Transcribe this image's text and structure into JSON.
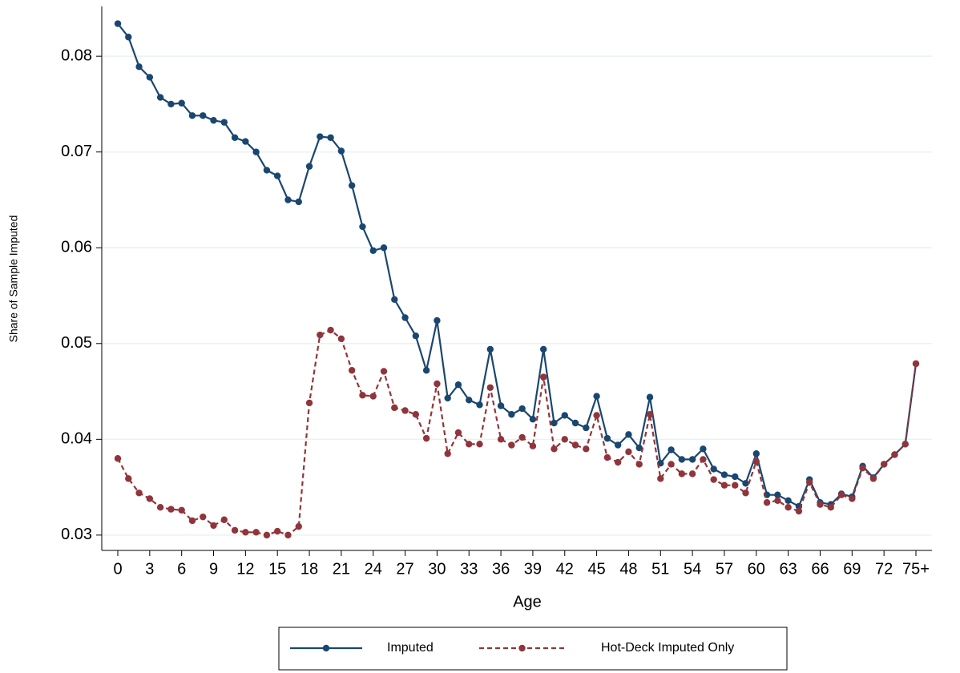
{
  "chart_data": {
    "type": "line",
    "xlabel": "Age",
    "ylabel": "Share of Sample Imputed",
    "categories": [
      "0",
      null,
      null,
      "3",
      null,
      null,
      "6",
      null,
      null,
      "9",
      null,
      null,
      "12",
      null,
      null,
      "15",
      null,
      null,
      "18",
      null,
      null,
      "21",
      null,
      null,
      "24",
      null,
      null,
      "27",
      null,
      null,
      "30",
      null,
      null,
      "33",
      null,
      null,
      "36",
      null,
      null,
      "39",
      null,
      null,
      "42",
      null,
      null,
      "45",
      null,
      null,
      "48",
      null,
      null,
      "51",
      null,
      null,
      "54",
      null,
      null,
      "57",
      null,
      null,
      "60",
      null,
      null,
      "63",
      null,
      null,
      "66",
      null,
      null,
      "69",
      null,
      null,
      "72",
      null,
      null,
      "75+"
    ],
    "series": [
      {
        "name": "Imputed",
        "color": "#1a476f",
        "dashed": false,
        "values": [
          0.0834,
          0.082,
          0.0789,
          0.0778,
          0.0757,
          0.075,
          0.0751,
          0.0738,
          0.0738,
          0.0733,
          0.0731,
          0.0715,
          0.0711,
          0.07,
          0.0681,
          0.0675,
          0.065,
          0.0648,
          0.0685,
          0.0716,
          0.0715,
          0.0701,
          0.0665,
          0.0622,
          0.0597,
          0.06,
          0.0546,
          0.0527,
          0.0508,
          0.0472,
          0.0524,
          0.0443,
          0.0457,
          0.0441,
          0.0436,
          0.0494,
          0.0435,
          0.0426,
          0.0432,
          0.0421,
          0.0494,
          0.0417,
          0.0425,
          0.0417,
          0.0412,
          0.0445,
          0.0401,
          0.0394,
          0.0405,
          0.0391,
          0.0444,
          0.0375,
          0.0389,
          0.0379,
          0.0379,
          0.039,
          0.0369,
          0.0363,
          0.0361,
          0.0354,
          0.0385,
          0.0342,
          0.0342,
          0.0336,
          0.033,
          0.0358,
          0.0334,
          0.0332,
          0.0343,
          0.034,
          0.0372,
          0.036,
          0.0374,
          0.0384,
          0.0395,
          0.0479
        ]
      },
      {
        "name": "Hot-Deck Imputed Only",
        "color": "#90353b",
        "dashed": true,
        "values": [
          0.038,
          0.0359,
          0.0344,
          0.0338,
          0.0329,
          0.0327,
          0.0326,
          0.0315,
          0.0319,
          0.031,
          0.0316,
          0.0305,
          0.0303,
          0.0303,
          0.03,
          0.0304,
          0.03,
          0.0309,
          0.0438,
          0.0509,
          0.0514,
          0.0505,
          0.0472,
          0.0446,
          0.0445,
          0.0471,
          0.0433,
          0.043,
          0.0426,
          0.0401,
          0.0458,
          0.0385,
          0.0407,
          0.0395,
          0.0395,
          0.0454,
          0.04,
          0.0394,
          0.0402,
          0.0393,
          0.0465,
          0.039,
          0.04,
          0.0394,
          0.039,
          0.0425,
          0.0381,
          0.0376,
          0.0387,
          0.0374,
          0.0426,
          0.0359,
          0.0374,
          0.0364,
          0.0364,
          0.0379,
          0.0358,
          0.0352,
          0.0352,
          0.0344,
          0.0377,
          0.0334,
          0.0336,
          0.0329,
          0.0325,
          0.0355,
          0.0332,
          0.0329,
          0.0342,
          0.0338,
          0.037,
          0.0359,
          0.0374,
          0.0384,
          0.0395,
          0.0479
        ]
      }
    ],
    "ylim": [
      0.0284,
      0.0852
    ],
    "yticks": [
      0.03,
      0.04,
      0.05,
      0.06,
      0.07,
      0.08
    ],
    "grid": true,
    "legend": "bottom"
  }
}
